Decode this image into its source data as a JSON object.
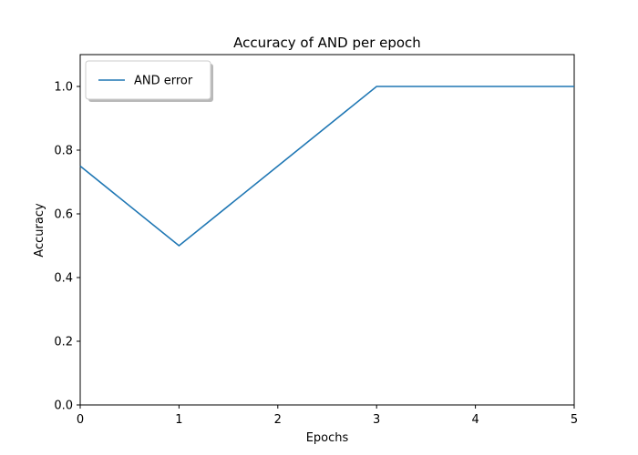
{
  "chart_data": {
    "type": "line",
    "title": "Accuracy of AND per epoch",
    "xlabel": "Epochs",
    "ylabel": "Accuracy",
    "xlim": [
      0,
      5
    ],
    "ylim": [
      0,
      1.1
    ],
    "xticks": [
      0,
      1,
      2,
      3,
      4,
      5
    ],
    "xtick_labels": [
      "0",
      "1",
      "2",
      "3",
      "4",
      "5"
    ],
    "yticks": [
      0,
      0.2,
      0.4,
      0.6,
      0.8,
      1.0
    ],
    "ytick_labels": [
      "0.0",
      "0.2",
      "0.4",
      "0.6",
      "0.8",
      "1.0"
    ],
    "grid": false,
    "legend_position": "top-left",
    "series": [
      {
        "name": "AND error",
        "color": "#1f77b4",
        "x": [
          0,
          1,
          2,
          3,
          4,
          5
        ],
        "y": [
          0.75,
          0.5,
          0.75,
          1.0,
          1.0,
          1.0
        ]
      }
    ]
  }
}
